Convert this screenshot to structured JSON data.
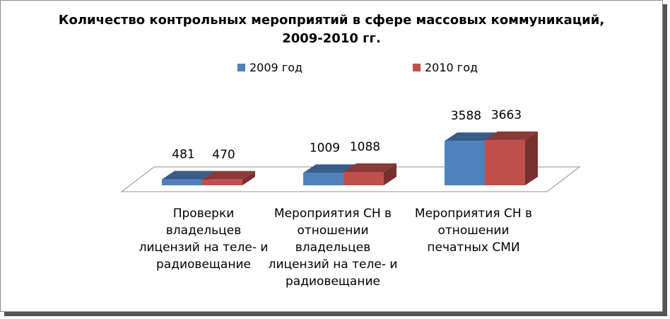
{
  "chart_data": {
    "type": "bar",
    "title_line1": "Количество контрольных мероприятий в сфере массовых коммуникаций,",
    "title_line2": "2009-2010 гг.",
    "categories": [
      [
        "Проверки",
        "владельцев",
        "лицензий на теле- и",
        "радиовещание"
      ],
      [
        "Мероприятия СН в",
        "отношении",
        "владельцев",
        "лицензий на теле- и",
        "радиовещание"
      ],
      [
        "Мероприятия СН в",
        "отношении",
        "печатных СМИ"
      ]
    ],
    "series": [
      {
        "name": "2009 год",
        "values": [
          481,
          1009,
          3588
        ],
        "color": "#4f81bd"
      },
      {
        "name": "2010 год",
        "values": [
          470,
          1088,
          3663
        ],
        "color": "#c0504d"
      }
    ],
    "legend_position": "top",
    "grid": false,
    "three_d": true
  }
}
